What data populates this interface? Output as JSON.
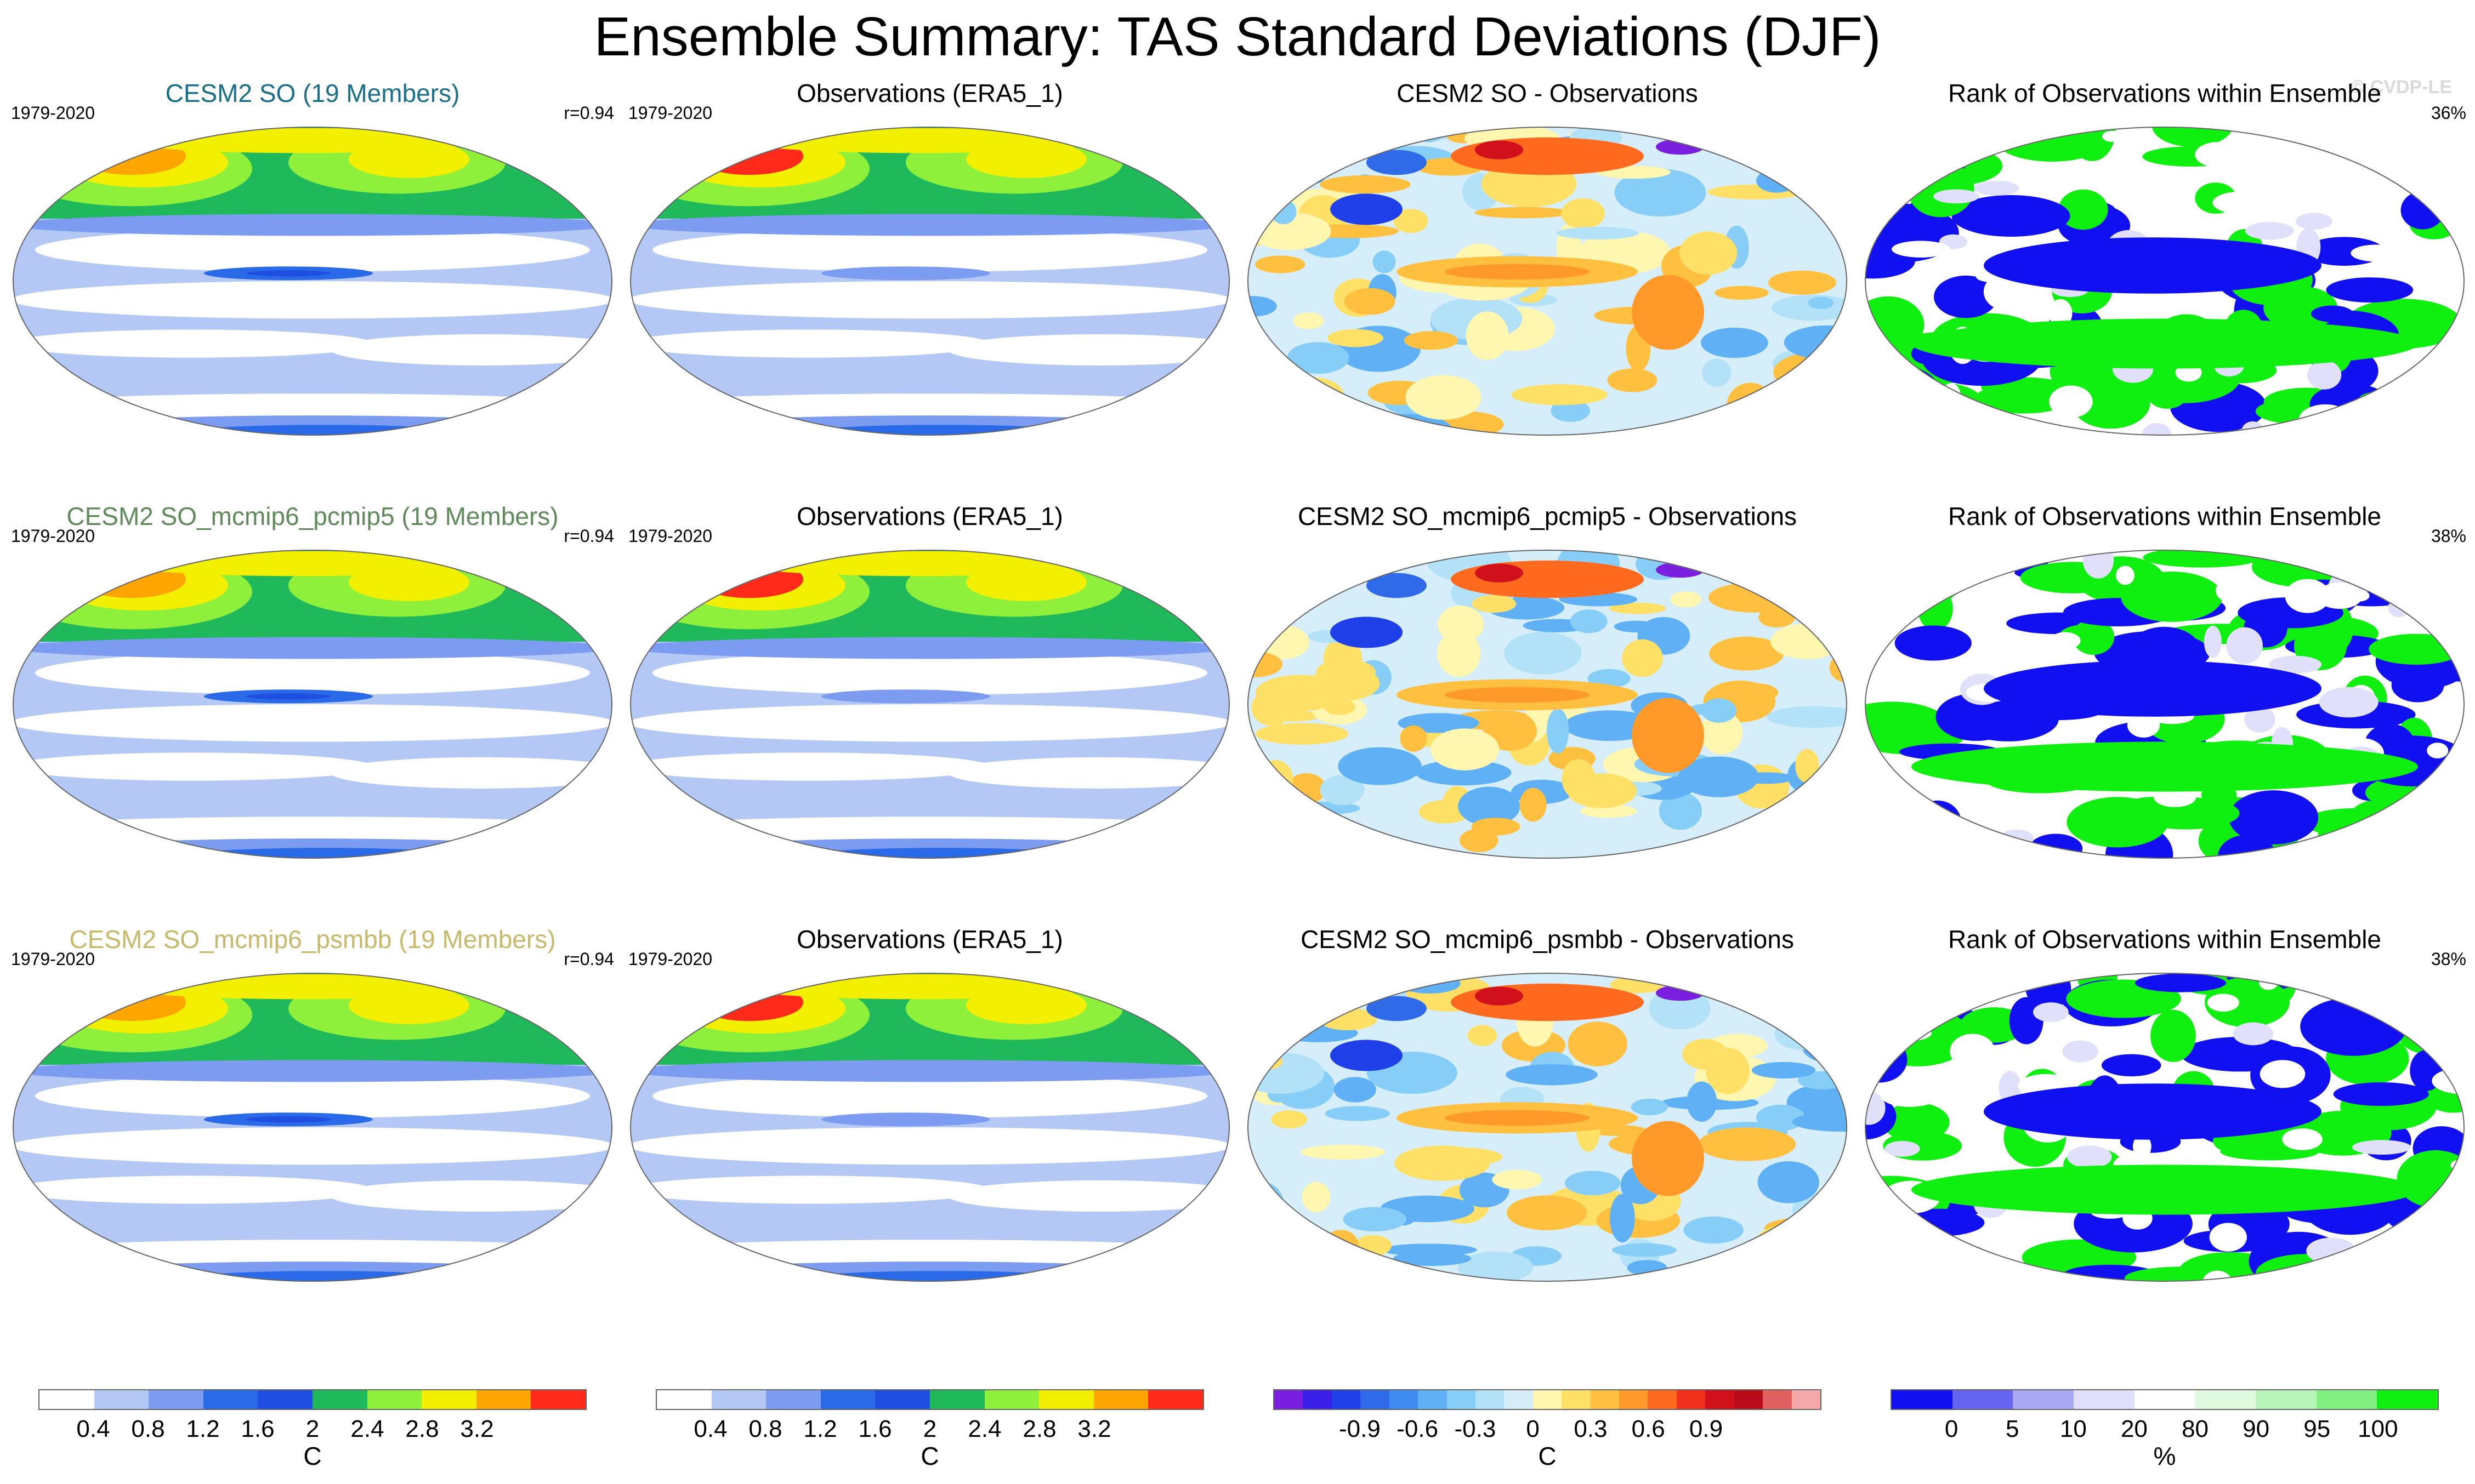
{
  "page": {
    "title": "Ensemble Summary: TAS Standard Deviations (DJF)",
    "credit": "© CVDP-LE"
  },
  "rows": [
    {
      "panels": [
        {
          "title": "CESM2 SO (19 Members)",
          "title_color": "#1a6f8a",
          "left": "1979-2020",
          "right": "r=0.94",
          "kind": "std"
        },
        {
          "title": "Observations (ERA5_1)",
          "title_color": "#000000",
          "left": "1979-2020",
          "right": "",
          "kind": "std_obs"
        },
        {
          "title": "CESM2 SO - Observations",
          "title_color": "#000000",
          "left": "",
          "right": "",
          "kind": "diff"
        },
        {
          "title": "Rank of Observations within Ensemble",
          "title_color": "#000000",
          "left": "",
          "right": "36%",
          "kind": "rank"
        }
      ]
    },
    {
      "panels": [
        {
          "title": "CESM2 SO_mcmip6_pcmip5 (19 Members)",
          "title_color": "#5f8a5a",
          "left": "1979-2020",
          "right": "r=0.94",
          "kind": "std"
        },
        {
          "title": "Observations (ERA5_1)",
          "title_color": "#000000",
          "left": "1979-2020",
          "right": "",
          "kind": "std_obs"
        },
        {
          "title": "CESM2 SO_mcmip6_pcmip5 - Observations",
          "title_color": "#000000",
          "left": "",
          "right": "",
          "kind": "diff"
        },
        {
          "title": "Rank of Observations within Ensemble",
          "title_color": "#000000",
          "left": "",
          "right": "38%",
          "kind": "rank"
        }
      ]
    },
    {
      "panels": [
        {
          "title": "CESM2 SO_mcmip6_psmbb (19 Members)",
          "title_color": "#c8b86a",
          "left": "1979-2020",
          "right": "r=0.94",
          "kind": "std"
        },
        {
          "title": "Observations (ERA5_1)",
          "title_color": "#000000",
          "left": "1979-2020",
          "right": "",
          "kind": "std_obs"
        },
        {
          "title": "CESM2 SO_mcmip6_psmbb - Observations",
          "title_color": "#000000",
          "left": "",
          "right": "",
          "kind": "diff"
        },
        {
          "title": "Rank of Observations within Ensemble",
          "title_color": "#000000",
          "left": "",
          "right": "38%",
          "kind": "rank"
        }
      ]
    }
  ],
  "colorbars": [
    {
      "unit": "C",
      "ticks": [
        "0.4",
        "0.8",
        "1.2",
        "1.6",
        "2",
        "2.4",
        "2.8",
        "3.2"
      ],
      "colors": [
        "#ffffff",
        "#b4c8f5",
        "#7c9cf2",
        "#2a6ae8",
        "#1f4fe0",
        "#1fb85a",
        "#8ef03a",
        "#f2f000",
        "#ffa500",
        "#ff2a1a"
      ]
    },
    {
      "unit": "C",
      "ticks": [
        "0.4",
        "0.8",
        "1.2",
        "1.6",
        "2",
        "2.4",
        "2.8",
        "3.2"
      ],
      "colors": [
        "#ffffff",
        "#b4c8f5",
        "#7c9cf2",
        "#2a6ae8",
        "#1f4fe0",
        "#1fb85a",
        "#8ef03a",
        "#f2f000",
        "#ffa500",
        "#ff2a1a"
      ]
    },
    {
      "unit": "C",
      "ticks": [
        "-0.9",
        "-0.6",
        "-0.3",
        "0",
        "0.3",
        "0.6",
        "0.9"
      ],
      "colors": [
        "#7a1fe0",
        "#3a1fe8",
        "#1f3fe8",
        "#2f6ae8",
        "#3e8cf0",
        "#5fb0f5",
        "#86cdf7",
        "#b3e2f8",
        "#d6eefa",
        "#fff6b0",
        "#ffe066",
        "#ffc040",
        "#ff9a2a",
        "#ff6a1f",
        "#f0301a",
        "#d0101a",
        "#b80c1a",
        "#e06060",
        "#f5a8a8"
      ]
    },
    {
      "unit": "%",
      "ticks": [
        "0",
        "5",
        "10",
        "20",
        "80",
        "90",
        "95",
        "100"
      ],
      "colors": [
        "#1010f0",
        "#6464f0",
        "#a8a8f5",
        "#e0e0fa",
        "#ffffff",
        "#e0fae0",
        "#b8f5b8",
        "#80f080",
        "#10f010"
      ]
    }
  ]
}
